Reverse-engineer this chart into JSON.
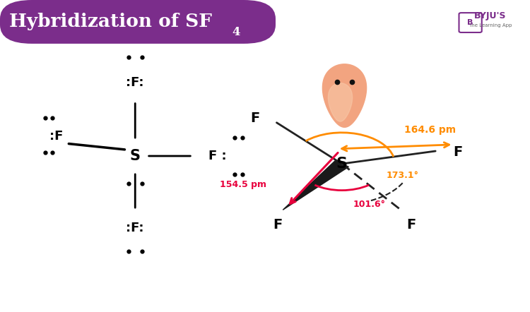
{
  "title": "Hybridization of SF",
  "title_subscript": "4",
  "title_bg_color": "#7B2D8B",
  "title_text_color": "#FFFFFF",
  "bg_color": "#FFFFFF",
  "arrow_color_orange": "#FF8C00",
  "arrow_color_red": "#E8003D",
  "bond_color": "#222222",
  "angle_164": "164.6 pm",
  "angle_173": "173.1°",
  "angle_101": "101.6°",
  "dist_154": "154.5 pm"
}
